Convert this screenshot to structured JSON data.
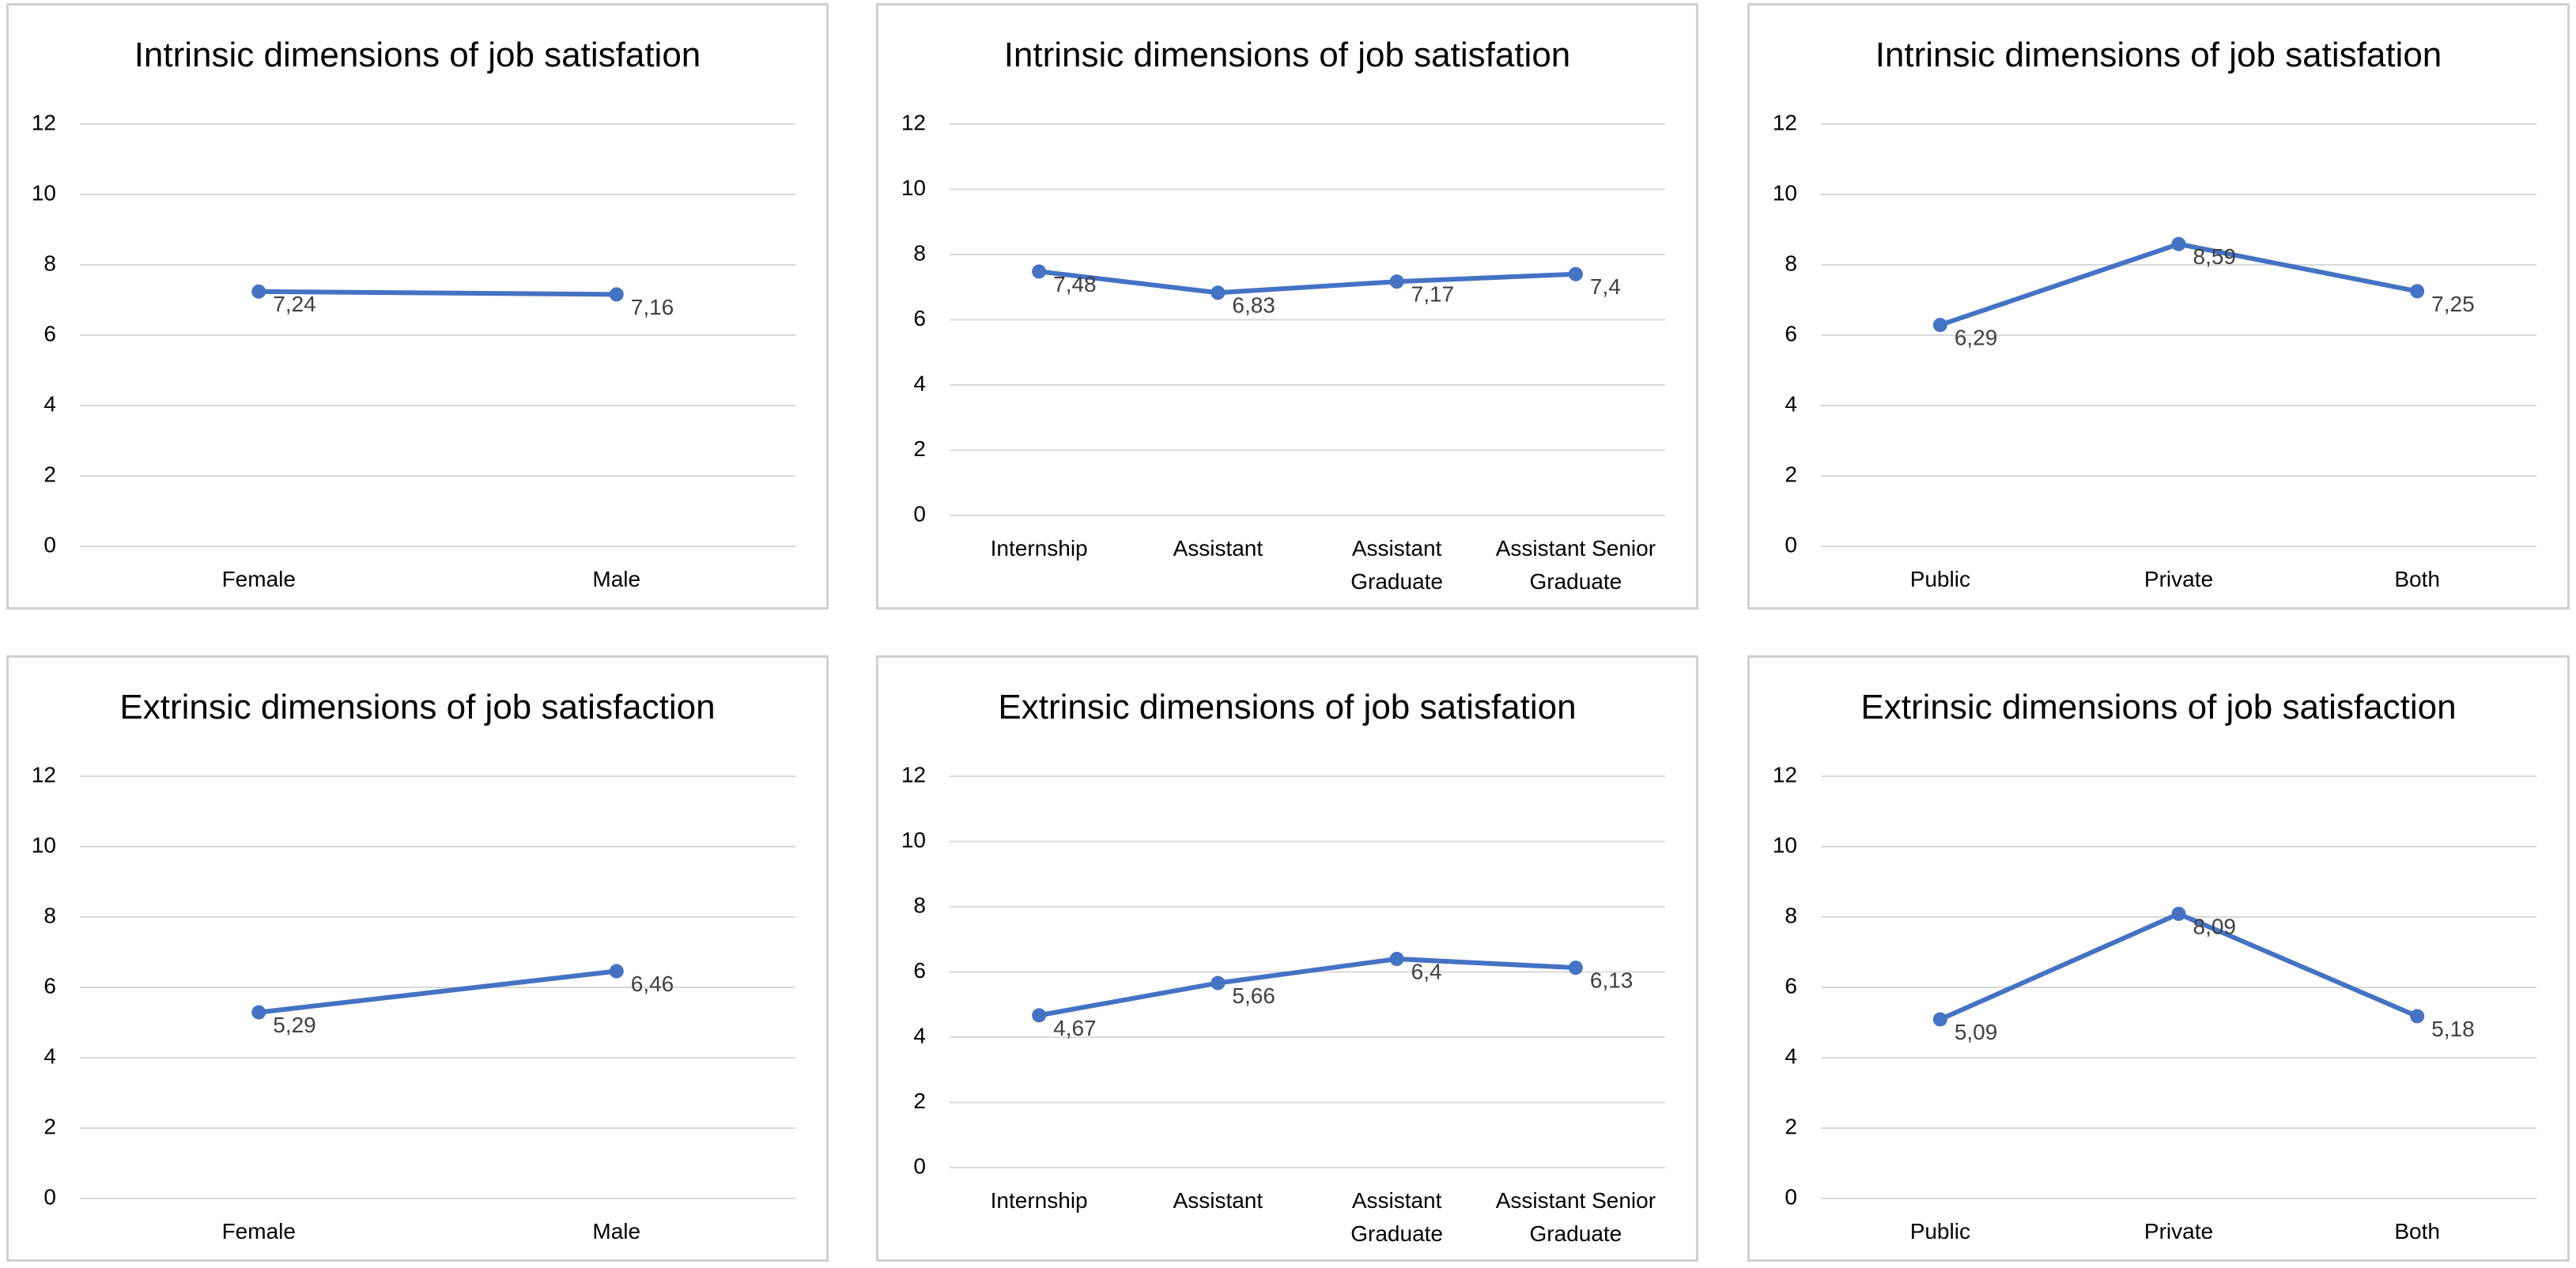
{
  "chart_data": [
    {
      "type": "line",
      "title": "Intrinsic dimensions of job satisfation",
      "categories": [
        "Female",
        "Male"
      ],
      "values": [
        7.24,
        7.16
      ],
      "value_labels": [
        "7,24",
        "7,16"
      ],
      "color": "#4472c4",
      "ylim": [
        0,
        12
      ],
      "yticks": [
        0,
        2,
        4,
        6,
        8,
        10,
        12
      ],
      "grid": true
    },
    {
      "type": "line",
      "title": "Intrinsic dimensions of job satisfation",
      "categories": [
        "Internship",
        "Assistant",
        "Assistant Graduate",
        "Assistant Senior Graduate"
      ],
      "values": [
        7.48,
        6.83,
        7.17,
        7.4
      ],
      "value_labels": [
        "7,48",
        "6,83",
        "7,17",
        "7,4"
      ],
      "color": "#4472c4",
      "ylim": [
        0,
        12
      ],
      "yticks": [
        0,
        2,
        4,
        6,
        8,
        10,
        12
      ],
      "grid": true
    },
    {
      "type": "line",
      "title": "Intrinsic dimensions of job satisfation",
      "categories": [
        "Public",
        "Private",
        "Both"
      ],
      "values": [
        6.29,
        8.59,
        7.25
      ],
      "value_labels": [
        "6,29",
        "8,59",
        "7,25"
      ],
      "color": "#4472c4",
      "ylim": [
        0,
        12
      ],
      "yticks": [
        0,
        2,
        4,
        6,
        8,
        10,
        12
      ],
      "grid": true
    },
    {
      "type": "line",
      "title": "Extrinsic dimensions of job satisfaction",
      "categories": [
        "Female",
        "Male"
      ],
      "values": [
        5.29,
        6.46
      ],
      "value_labels": [
        "5,29",
        "6,46"
      ],
      "color": "#4472c4",
      "ylim": [
        0,
        12
      ],
      "yticks": [
        0,
        2,
        4,
        6,
        8,
        10,
        12
      ],
      "grid": true
    },
    {
      "type": "line",
      "title": "Extrinsic dimensions of job satisfation",
      "categories": [
        "Internship",
        "Assistant",
        "Assistant Graduate",
        "Assistant Senior Graduate"
      ],
      "values": [
        4.67,
        5.66,
        6.4,
        6.13
      ],
      "value_labels": [
        "4,67",
        "5,66",
        "6,4",
        "6,13"
      ],
      "color": "#4472c4",
      "ylim": [
        0,
        12
      ],
      "yticks": [
        0,
        2,
        4,
        6,
        8,
        10,
        12
      ],
      "grid": true
    },
    {
      "type": "line",
      "title": "Extrinsic dimensions of job satisfaction",
      "categories": [
        "Public",
        "Private",
        "Both"
      ],
      "values": [
        5.09,
        8.09,
        5.18
      ],
      "value_labels": [
        "5,09",
        "8,09",
        "5,18"
      ],
      "color": "#4472c4",
      "ylim": [
        0,
        12
      ],
      "yticks": [
        0,
        2,
        4,
        6,
        8,
        10,
        12
      ],
      "grid": true
    }
  ]
}
